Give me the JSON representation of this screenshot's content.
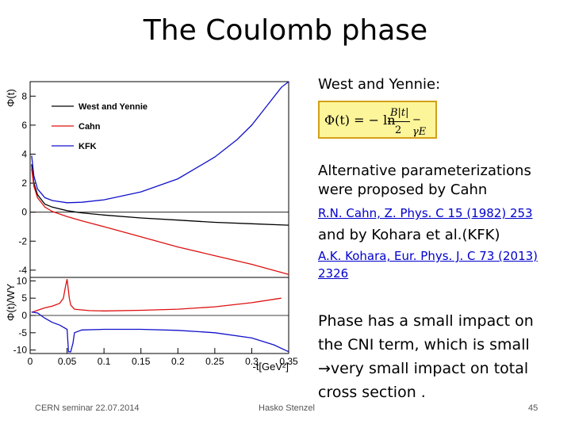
{
  "slide": {
    "title": "The Coulomb phase",
    "wy_label": "West and Yennie:",
    "formula": {
      "lhs": "Φ(t) = − ln",
      "numerator": "B|t|",
      "denominator": "2",
      "rhs": "− γE"
    },
    "alt_text": "Alternative parameterizations were proposed by Cahn",
    "cahn_ref": "R.N. Cahn, Z. Phys. C 15 (1982) 253",
    "kohara_text": "and by Kohara et al.(KFK)",
    "kohara_ref": "A.K. Kohara, Eur. Phys. J. C 73 (2013) 2326",
    "phase_text_1": "Phase has a small impact on the CNI term, which is small",
    "phase_arrow": "→",
    "phase_text_2": "very small impact on total cross section .",
    "footer_left": "CERN seminar 22.07.2014",
    "footer_center": "Hasko Stenzel",
    "page_number": "45"
  },
  "colors": {
    "west_yennie": "#000000",
    "cahn": "#dd1111",
    "kfk": "#1111cc",
    "formula_bg": "#fdf59a"
  },
  "chart_data": [
    {
      "type": "line",
      "ylabel": "Φ(t)",
      "xlim": [
        0,
        0.35
      ],
      "ylim": [
        -4.5,
        9
      ],
      "yticks": [
        -4,
        -2,
        0,
        2,
        4,
        6,
        8
      ],
      "legend": [
        "West and Yennie",
        "Cahn",
        "KFK"
      ],
      "legend_position": "top-left",
      "series": [
        {
          "name": "West and Yennie",
          "x": [
            0.002,
            0.005,
            0.01,
            0.02,
            0.03,
            0.05,
            0.07,
            0.1,
            0.15,
            0.2,
            0.25,
            0.3,
            0.35
          ],
          "y": [
            3.3,
            2.0,
            1.2,
            0.55,
            0.35,
            0.1,
            -0.05,
            -0.2,
            -0.4,
            -0.55,
            -0.7,
            -0.8,
            -0.9
          ]
        },
        {
          "name": "Cahn",
          "x": [
            0.002,
            0.005,
            0.01,
            0.02,
            0.03,
            0.05,
            0.07,
            0.1,
            0.15,
            0.2,
            0.25,
            0.3,
            0.35
          ],
          "y": [
            3.0,
            1.8,
            1.0,
            0.35,
            0.05,
            -0.3,
            -0.6,
            -1.0,
            -1.7,
            -2.4,
            -3.0,
            -3.6,
            -4.3
          ]
        },
        {
          "name": "KFK",
          "x": [
            0.002,
            0.005,
            0.01,
            0.02,
            0.03,
            0.05,
            0.07,
            0.1,
            0.15,
            0.2,
            0.25,
            0.28,
            0.3,
            0.32,
            0.34,
            0.35
          ],
          "y": [
            3.9,
            2.5,
            1.6,
            1.0,
            0.8,
            0.65,
            0.68,
            0.85,
            1.4,
            2.3,
            3.8,
            5.0,
            6.0,
            7.3,
            8.6,
            9.5
          ]
        }
      ]
    },
    {
      "type": "line",
      "ylabel": "Φ(t)/WY",
      "xlabel": "-t[GeV²]",
      "xlim": [
        0,
        0.35
      ],
      "ylim": [
        -11,
        11
      ],
      "yticks": [
        -10,
        -5,
        0,
        5,
        10
      ],
      "xticks": [
        0,
        0.05,
        0.1,
        0.15,
        0.2,
        0.25,
        0.3,
        0.35
      ],
      "series": [
        {
          "name": "Cahn",
          "x": [
            0.002,
            0.01,
            0.02,
            0.03,
            0.04,
            0.045,
            0.048,
            0.05,
            0.053,
            0.055,
            0.06,
            0.08,
            0.1,
            0.15,
            0.2,
            0.25,
            0.3,
            0.34
          ],
          "y": [
            0.9,
            1.5,
            2.2,
            2.7,
            3.5,
            5.0,
            8.5,
            10.5,
            5.0,
            3.0,
            1.8,
            1.4,
            1.3,
            1.5,
            1.8,
            2.5,
            3.7,
            5.0
          ]
        },
        {
          "name": "KFK",
          "x": [
            0.002,
            0.01,
            0.02,
            0.03,
            0.04,
            0.05,
            0.052,
            0.055,
            0.058,
            0.06,
            0.07,
            0.1,
            0.15,
            0.2,
            0.25,
            0.3,
            0.33,
            0.35
          ],
          "y": [
            1.0,
            0.7,
            -0.8,
            -2.0,
            -2.8,
            -4.0,
            -10.5,
            -10.5,
            -8.0,
            -5.0,
            -4.2,
            -4.0,
            -4.0,
            -4.3,
            -5.0,
            -6.5,
            -8.5,
            -10.5
          ]
        }
      ]
    }
  ]
}
